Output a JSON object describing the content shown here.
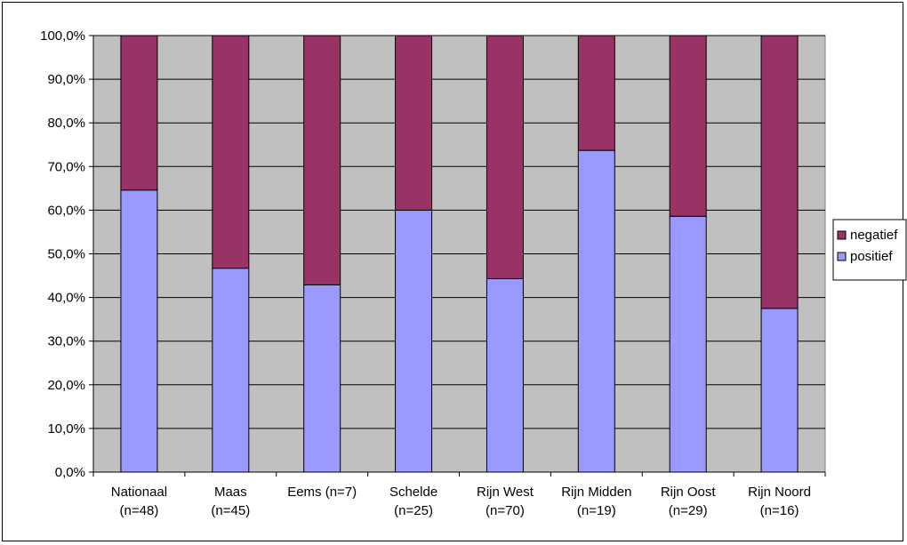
{
  "chart_data": {
    "type": "bar",
    "stacked": true,
    "percent": true,
    "categories": [
      [
        "Nationaal",
        "(n=48)"
      ],
      [
        "Maas",
        "(n=45)"
      ],
      [
        "Eems (n=7)",
        ""
      ],
      [
        "Schelde",
        "(n=25)"
      ],
      [
        "Rijn West",
        "(n=70)"
      ],
      [
        "Rijn Midden",
        "(n=19)"
      ],
      [
        "Rijn Oost",
        "(n=29)"
      ],
      [
        "Rijn Noord",
        "(n=16)"
      ]
    ],
    "series": [
      {
        "name": "positief",
        "color": "#9999FF",
        "values": [
          64.6,
          46.7,
          42.9,
          60.0,
          44.3,
          73.7,
          58.6,
          37.5
        ]
      },
      {
        "name": "negatief",
        "color": "#993366",
        "values": [
          35.4,
          53.3,
          57.1,
          40.0,
          55.7,
          26.3,
          41.4,
          62.5
        ]
      }
    ],
    "ylim": [
      0,
      100
    ],
    "yticks": [
      "0,0%",
      "10,0%",
      "20,0%",
      "30,0%",
      "40,0%",
      "50,0%",
      "60,0%",
      "70,0%",
      "80,0%",
      "90,0%",
      "100,0%"
    ],
    "plot_background": "#C0C0C0",
    "grid": true,
    "legend": {
      "placement": "right",
      "order": [
        "negatief",
        "positief"
      ]
    }
  }
}
